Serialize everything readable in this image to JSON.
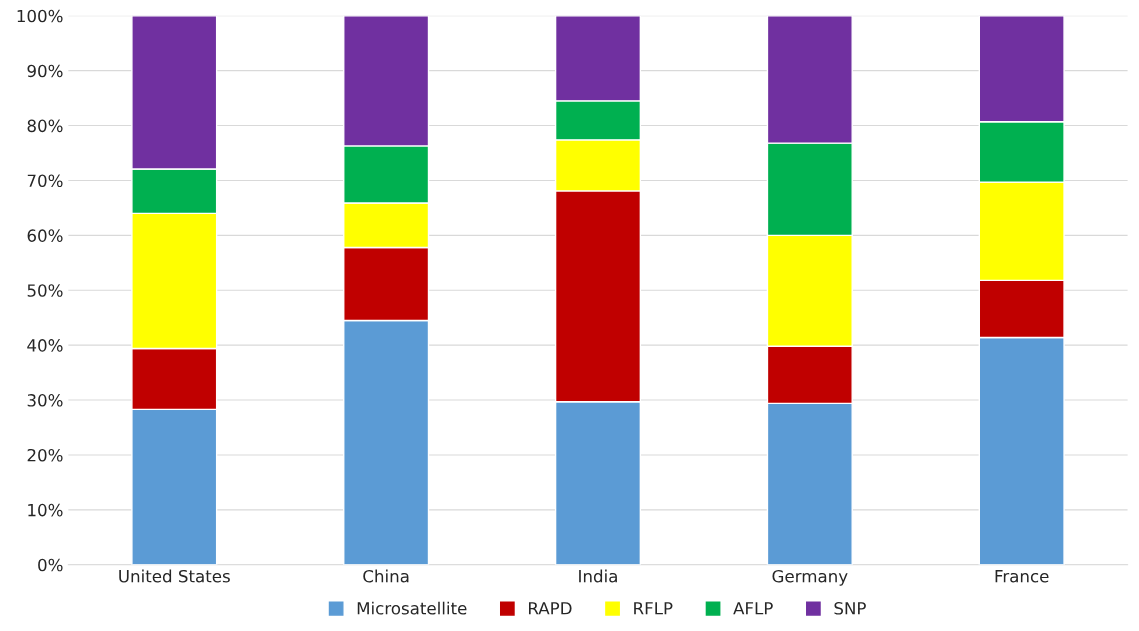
{
  "chart_data": {
    "type": "bar",
    "stacked": true,
    "categories": [
      "United States",
      "China",
      "India",
      "Germany",
      "France"
    ],
    "series": [
      {
        "name": "Microsatellite",
        "color": "#5b9bd5",
        "values": [
          28.3,
          44.5,
          29.7,
          29.4,
          41.4
        ]
      },
      {
        "name": "RAPD",
        "color": "#c00000",
        "values": [
          11.1,
          13.3,
          38.4,
          10.4,
          10.4
        ]
      },
      {
        "name": "RFLP",
        "color": "#ffff00",
        "values": [
          24.6,
          8.1,
          9.3,
          20.2,
          17.9
        ]
      },
      {
        "name": "AFLP",
        "color": "#00b050",
        "values": [
          8.1,
          10.4,
          7.1,
          16.8,
          11.0
        ]
      },
      {
        "name": "SNP",
        "color": "#7030a0",
        "values": [
          27.9,
          23.7,
          15.5,
          23.2,
          19.3
        ]
      }
    ],
    "ylim": [
      0,
      100
    ],
    "yticks": [
      {
        "value": 0,
        "label": "0%"
      },
      {
        "value": 10,
        "label": "10%"
      },
      {
        "value": 20,
        "label": "20%"
      },
      {
        "value": 30,
        "label": "30%"
      },
      {
        "value": 40,
        "label": "40%"
      },
      {
        "value": 50,
        "label": "50%"
      },
      {
        "value": 60,
        "label": "60%"
      },
      {
        "value": 70,
        "label": "70%"
      },
      {
        "value": 80,
        "label": "80%"
      },
      {
        "value": 90,
        "label": "90%"
      },
      {
        "value": 100,
        "label": "100%"
      }
    ],
    "grid": "y",
    "legend": "bottom"
  }
}
